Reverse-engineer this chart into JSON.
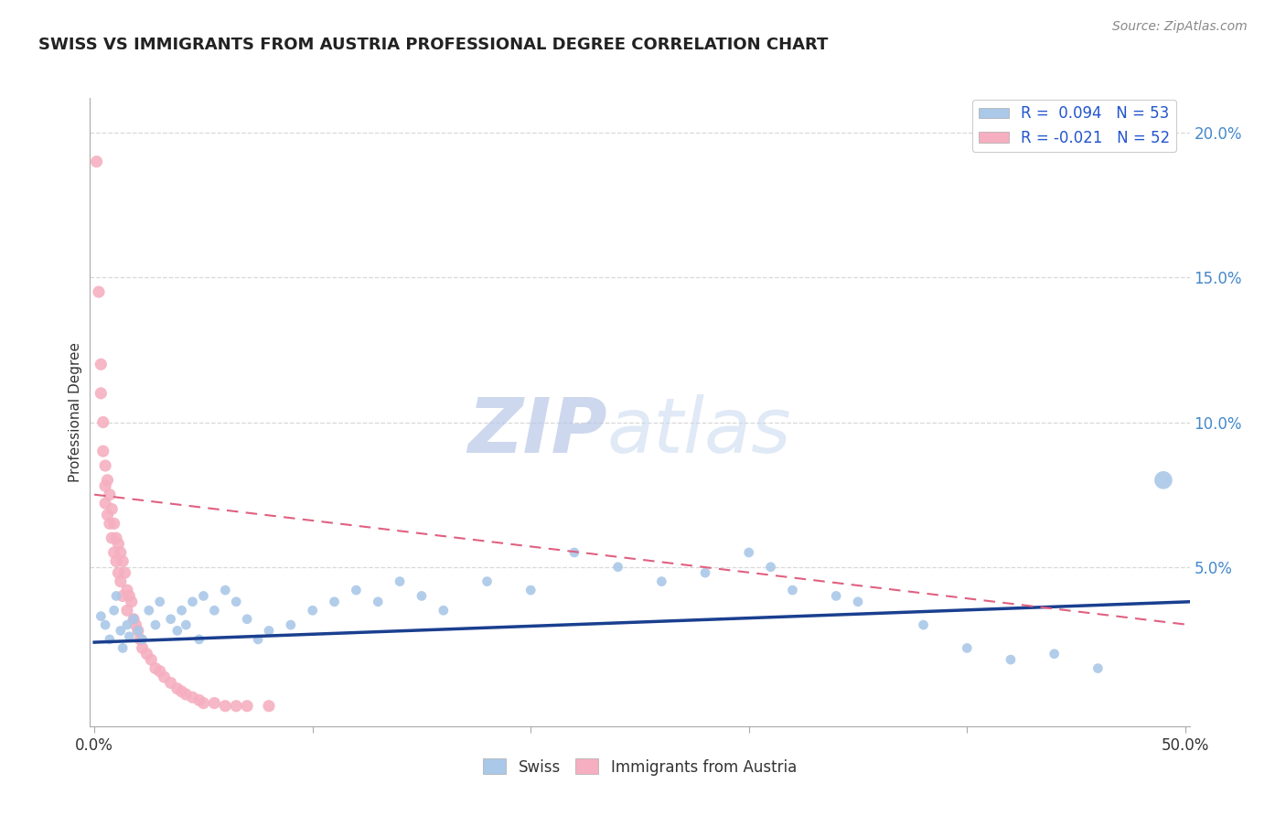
{
  "title": "SWISS VS IMMIGRANTS FROM AUSTRIA PROFESSIONAL DEGREE CORRELATION CHART",
  "source_text": "Source: ZipAtlas.com",
  "ylabel": "Professional Degree",
  "xlim": [
    -0.002,
    0.502
  ],
  "ylim": [
    -0.005,
    0.212
  ],
  "xtick_positions": [
    0.0,
    0.5
  ],
  "xtick_labels": [
    "0.0%",
    "50.0%"
  ],
  "yticks_right": [
    0.05,
    0.1,
    0.15,
    0.2
  ],
  "ytick_right_labels": [
    "5.0%",
    "10.0%",
    "15.0%",
    "20.0%"
  ],
  "legend_r_swiss": "R =  0.094",
  "legend_n_swiss": "N = 53",
  "legend_r_austria": "R = -0.021",
  "legend_n_austria": "N = 52",
  "swiss_color": "#aac8e8",
  "austria_color": "#f5afc0",
  "swiss_line_color": "#1a3f8f",
  "austria_line_color": "#e06080",
  "background_color": "#ffffff",
  "grid_color": "#d8d8d8",
  "watermark_color": "#cdd8ee",
  "title_color": "#222222",
  "tick_label_color_right": "#4488cc",
  "tick_label_color_bottom": "#333333",
  "swiss_x": [
    0.003,
    0.005,
    0.007,
    0.009,
    0.01,
    0.012,
    0.013,
    0.015,
    0.016,
    0.018,
    0.02,
    0.022,
    0.025,
    0.028,
    0.03,
    0.035,
    0.038,
    0.04,
    0.042,
    0.045,
    0.048,
    0.05,
    0.055,
    0.06,
    0.065,
    0.07,
    0.075,
    0.08,
    0.09,
    0.1,
    0.11,
    0.12,
    0.13,
    0.14,
    0.15,
    0.16,
    0.18,
    0.2,
    0.22,
    0.24,
    0.26,
    0.28,
    0.3,
    0.31,
    0.32,
    0.34,
    0.35,
    0.38,
    0.4,
    0.42,
    0.44,
    0.46,
    0.49
  ],
  "swiss_y": [
    0.033,
    0.03,
    0.025,
    0.035,
    0.04,
    0.028,
    0.022,
    0.03,
    0.026,
    0.032,
    0.028,
    0.025,
    0.035,
    0.03,
    0.038,
    0.032,
    0.028,
    0.035,
    0.03,
    0.038,
    0.025,
    0.04,
    0.035,
    0.042,
    0.038,
    0.032,
    0.025,
    0.028,
    0.03,
    0.035,
    0.038,
    0.042,
    0.038,
    0.045,
    0.04,
    0.035,
    0.045,
    0.042,
    0.055,
    0.05,
    0.045,
    0.048,
    0.055,
    0.05,
    0.042,
    0.04,
    0.038,
    0.03,
    0.022,
    0.018,
    0.02,
    0.015,
    0.08
  ],
  "swiss_sizes": [
    60,
    60,
    60,
    60,
    60,
    60,
    60,
    60,
    60,
    60,
    60,
    60,
    60,
    60,
    60,
    60,
    60,
    60,
    60,
    60,
    60,
    60,
    60,
    60,
    60,
    60,
    60,
    60,
    60,
    60,
    60,
    60,
    60,
    60,
    60,
    60,
    60,
    60,
    60,
    60,
    60,
    60,
    60,
    60,
    60,
    60,
    60,
    60,
    60,
    60,
    60,
    60,
    200
  ],
  "austria_x": [
    0.001,
    0.002,
    0.003,
    0.003,
    0.004,
    0.004,
    0.005,
    0.005,
    0.005,
    0.006,
    0.006,
    0.007,
    0.007,
    0.008,
    0.008,
    0.009,
    0.009,
    0.01,
    0.01,
    0.011,
    0.011,
    0.012,
    0.012,
    0.013,
    0.013,
    0.014,
    0.015,
    0.015,
    0.016,
    0.017,
    0.018,
    0.019,
    0.02,
    0.021,
    0.022,
    0.024,
    0.026,
    0.028,
    0.03,
    0.032,
    0.035,
    0.038,
    0.04,
    0.042,
    0.045,
    0.048,
    0.05,
    0.055,
    0.06,
    0.065,
    0.07,
    0.08
  ],
  "austria_y": [
    0.19,
    0.145,
    0.12,
    0.11,
    0.1,
    0.09,
    0.085,
    0.078,
    0.072,
    0.08,
    0.068,
    0.075,
    0.065,
    0.07,
    0.06,
    0.065,
    0.055,
    0.06,
    0.052,
    0.058,
    0.048,
    0.055,
    0.045,
    0.052,
    0.04,
    0.048,
    0.042,
    0.035,
    0.04,
    0.038,
    0.032,
    0.03,
    0.028,
    0.025,
    0.022,
    0.02,
    0.018,
    0.015,
    0.014,
    0.012,
    0.01,
    0.008,
    0.007,
    0.006,
    0.005,
    0.004,
    0.003,
    0.003,
    0.002,
    0.002,
    0.002,
    0.002
  ],
  "swiss_trend_x": [
    0.0,
    0.502
  ],
  "swiss_trend_y": [
    0.024,
    0.038
  ],
  "austria_trend_x": [
    0.0,
    0.502
  ],
  "austria_trend_y": [
    0.075,
    0.03
  ]
}
